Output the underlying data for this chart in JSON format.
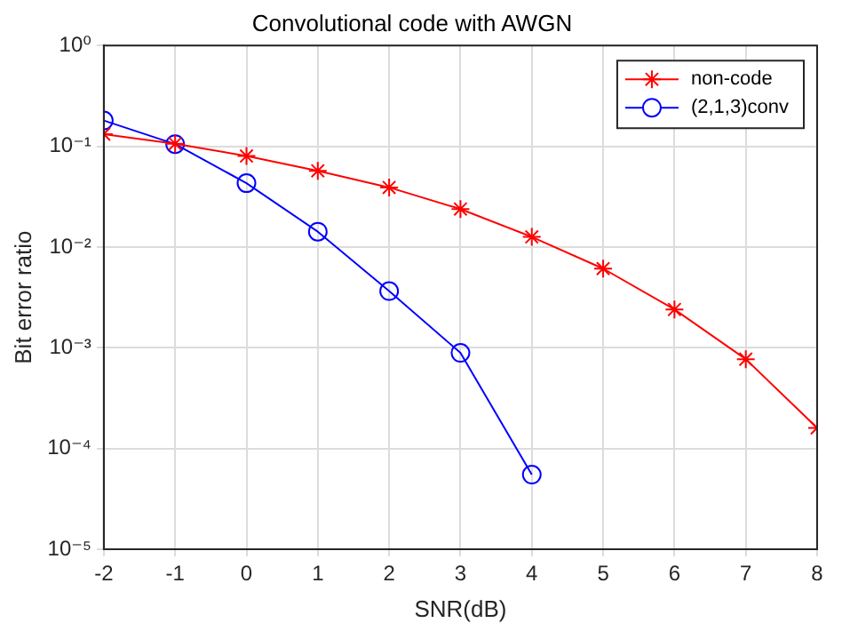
{
  "chart_data": {
    "type": "line",
    "title": "Convolutional code with AWGN",
    "xlabel": "SNR(dB)",
    "ylabel": "Bit error ratio",
    "x": [
      -2,
      -1,
      0,
      1,
      2,
      3,
      4,
      5,
      6,
      7,
      8
    ],
    "series": [
      {
        "name": "non-code",
        "color": "#ff0000",
        "marker": "cross",
        "values": [
          0.132,
          0.106,
          0.08,
          0.057,
          0.039,
          0.0238,
          0.0126,
          0.0061,
          0.0024,
          0.00077,
          0.00016
        ]
      },
      {
        "name": "(2,1,3)conv",
        "color": "#0000ff",
        "marker": "circle",
        "values": [
          0.18,
          0.105,
          0.043,
          0.0142,
          0.00365,
          0.00089,
          5.5e-05,
          null,
          null,
          null,
          null
        ]
      }
    ],
    "xlim": [
      -2,
      8
    ],
    "xticks": [
      -2,
      -1,
      0,
      1,
      2,
      3,
      4,
      5,
      6,
      7,
      8
    ],
    "ylim": [
      1e-05,
      1
    ],
    "yticks": [
      {
        "value": 1e-05,
        "label": "10⁻⁵"
      },
      {
        "value": 0.0001,
        "label": "10⁻⁴"
      },
      {
        "value": 0.001,
        "label": "10⁻³"
      },
      {
        "value": 0.01,
        "label": "10⁻²"
      },
      {
        "value": 0.1,
        "label": "10⁻¹"
      },
      {
        "value": 1,
        "label": "10⁰"
      }
    ],
    "log": "y",
    "grid": true,
    "legend": "top right",
    "line_style": "solid"
  }
}
